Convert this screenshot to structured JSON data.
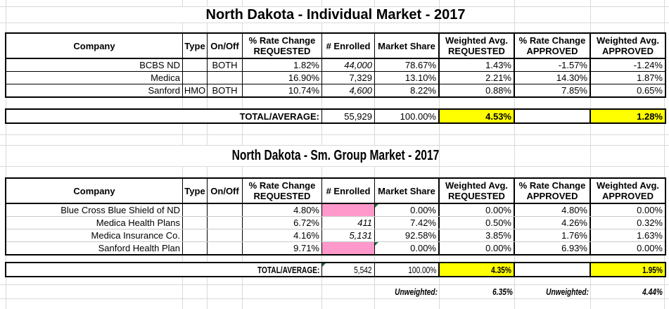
{
  "sheet": {
    "grid_color": "#d9d9d9",
    "border_color": "#000000"
  },
  "colors": {
    "highlight_yellow": "#ffff00",
    "missing_cell_pink": "#ff99cc",
    "flag_triangle_green": "#1d6f42"
  },
  "headers": {
    "company": "Company",
    "type": "Type",
    "onoff": "On/Off",
    "rate_req": "% Rate Change\nREQUESTED",
    "enrolled": "# Enrolled",
    "share": "Market Share",
    "wavg_req": "Weighted Avg.\nREQUESTED",
    "rate_app": "% Rate Change\nAPPROVED",
    "wavg_app": "Weighted Avg.\nAPPROVED"
  },
  "individual": {
    "title": "North Dakota - Individual Market - 2017",
    "rows": [
      {
        "company": "BCBS ND",
        "type": "",
        "onoff": "BOTH",
        "rate_req": "1.82%",
        "enrolled": "44,000",
        "share": "78.67%",
        "wavg_req": "1.43%",
        "rate_app": "-1.57%",
        "wavg_app": "-1.24%"
      },
      {
        "company": "Medica",
        "type": "",
        "onoff": "",
        "rate_req": "16.90%",
        "enrolled": "7,329",
        "share": "13.10%",
        "wavg_req": "2.21%",
        "rate_app": "14.30%",
        "wavg_app": "1.87%"
      },
      {
        "company": "Sanford",
        "type": "HMO",
        "onoff": "BOTH",
        "rate_req": "10.74%",
        "enrolled": "4,600",
        "share": "8.22%",
        "wavg_req": "0.88%",
        "rate_app": "7.85%",
        "wavg_app": "0.65%"
      }
    ],
    "total": {
      "label": "TOTAL/AVERAGE:",
      "enrolled": "55,929",
      "share": "100.00%",
      "wavg_req": "4.53%",
      "rate_app": "",
      "wavg_app": "1.28%"
    }
  },
  "smgroup": {
    "title": "North Dakota - Sm. Group Market - 2017",
    "rows": [
      {
        "company": "Blue Cross Blue Shield of ND",
        "type": "",
        "onoff": "",
        "rate_req": "4.80%",
        "enrolled": "",
        "share": "0.00%",
        "wavg_req": "0.00%",
        "rate_app": "4.80%",
        "wavg_app": "0.00%"
      },
      {
        "company": "Medica Health Plans",
        "type": "",
        "onoff": "",
        "rate_req": "6.72%",
        "enrolled": "411",
        "share": "7.42%",
        "wavg_req": "0.50%",
        "rate_app": "4.26%",
        "wavg_app": "0.32%"
      },
      {
        "company": "Medica Insurance Co.",
        "type": "",
        "onoff": "",
        "rate_req": "4.16%",
        "enrolled": "5,131",
        "share": "92.58%",
        "wavg_req": "3.85%",
        "rate_app": "1.76%",
        "wavg_app": "1.63%"
      },
      {
        "company": "Sanford Health Plan",
        "type": "",
        "onoff": "",
        "rate_req": "9.71%",
        "enrolled": "",
        "share": "0.00%",
        "wavg_req": "0.00%",
        "rate_app": "6.93%",
        "wavg_app": "0.00%"
      }
    ],
    "total": {
      "label": "TOTAL/AVERAGE:",
      "enrolled": "5,542",
      "share": "100.00%",
      "wavg_req": "4.35%",
      "rate_app": "",
      "wavg_app": "1.95%"
    }
  },
  "footer": {
    "unweighted_label_requested": "Unweighted:",
    "unweighted_requested": "6.35%",
    "unweighted_label_approved": "Unweighted:",
    "unweighted_approved": "4.44%"
  }
}
